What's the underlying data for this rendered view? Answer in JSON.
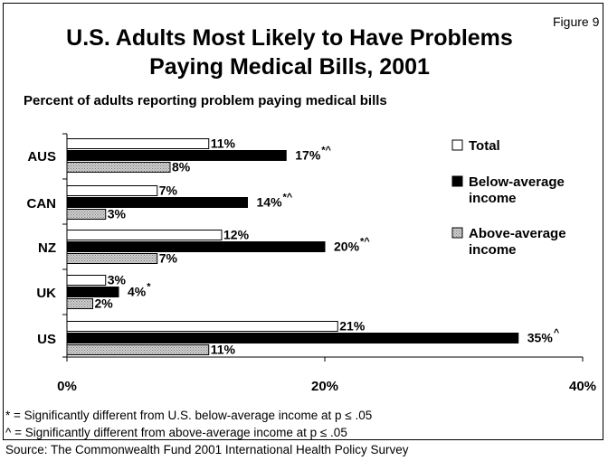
{
  "figure_label": "Figure 9",
  "title_line1": "U.S. Adults Most Likely to Have Problems",
  "title_line2": "Paying Medical Bills, 2001",
  "subtitle": "Percent of adults reporting problem paying medical bills",
  "chart_data": {
    "type": "bar",
    "orientation": "horizontal",
    "categories": [
      "AUS",
      "CAN",
      "NZ",
      "UK",
      "US"
    ],
    "series": [
      {
        "name": "Total",
        "values": [
          11,
          7,
          12,
          3,
          21
        ],
        "labels": [
          "11%",
          "7%",
          "12%",
          "3%",
          "21%"
        ],
        "color": "#ffffff"
      },
      {
        "name": "Below-average income",
        "values": [
          17,
          14,
          20,
          4,
          35
        ],
        "labels": [
          "17%",
          "14%",
          "20%",
          "4%",
          "35%"
        ],
        "color": "#000000"
      },
      {
        "name": "Above-average income",
        "values": [
          8,
          3,
          7,
          2,
          11
        ],
        "labels": [
          "8%",
          "3%",
          "7%",
          "2%",
          "11%"
        ],
        "color": "#c0c0c0"
      }
    ],
    "significance_marks": [
      "*^",
      "*^",
      "*^",
      "*",
      "^"
    ],
    "xlim": [
      0,
      40
    ],
    "xticks": [
      0,
      20,
      40
    ],
    "xtick_labels": [
      "0%",
      "20%",
      "40%"
    ],
    "grid": false,
    "legend_position": "right",
    "legend": [
      "Total",
      "Below-average income",
      "Above-average income"
    ]
  },
  "notes": [
    "* = Significantly different from U.S. below-average income at p ≤ .05",
    "^ = Significantly different from above-average income at p ≤ .05",
    "Source: The Commonwealth Fund 2001 International Health Policy Survey"
  ]
}
